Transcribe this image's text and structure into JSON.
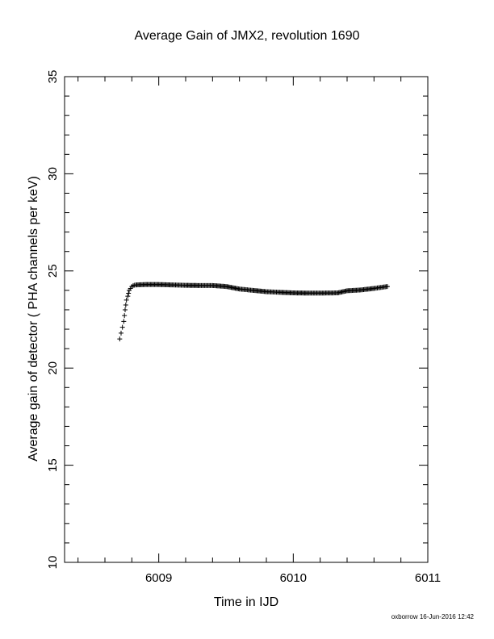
{
  "chart_data": {
    "type": "scatter",
    "title": "Average Gain of JMX2, revolution 1690",
    "xlabel": "Time in IJD",
    "ylabel": "Average gain of detector ( PHA channels per keV)",
    "xlim": [
      6008.3,
      6011.0
    ],
    "ylim": [
      10,
      35
    ],
    "x_ticks": [
      6009,
      6010,
      6011
    ],
    "y_ticks": [
      10,
      15,
      20,
      25,
      30,
      35
    ],
    "x_minor_step": 0.2,
    "y_minor_step": 1,
    "marker": "plus",
    "series": [
      {
        "points": [
          [
            6008.71,
            21.5
          ],
          [
            6008.72,
            21.8
          ],
          [
            6008.73,
            22.1
          ],
          [
            6008.74,
            22.4
          ],
          [
            6008.745,
            22.7
          ],
          [
            6008.75,
            23.0
          ],
          [
            6008.755,
            23.25
          ],
          [
            6008.76,
            23.5
          ],
          [
            6008.77,
            23.7
          ],
          [
            6008.775,
            23.85
          ],
          [
            6008.78,
            24.0
          ],
          [
            6008.79,
            24.1
          ],
          [
            6008.8,
            24.2
          ],
          [
            6008.81,
            24.25
          ],
          [
            6008.83,
            24.28
          ],
          [
            6008.9,
            24.3
          ],
          [
            6009.0,
            24.3
          ],
          [
            6009.1,
            24.28
          ],
          [
            6009.2,
            24.26
          ],
          [
            6009.3,
            24.25
          ],
          [
            6009.4,
            24.25
          ],
          [
            6009.5,
            24.2
          ],
          [
            6009.6,
            24.07
          ],
          [
            6009.7,
            24.0
          ],
          [
            6009.8,
            23.93
          ],
          [
            6009.9,
            23.9
          ],
          [
            6010.0,
            23.87
          ],
          [
            6010.1,
            23.86
          ],
          [
            6010.2,
            23.86
          ],
          [
            6010.33,
            23.87
          ],
          [
            6010.4,
            23.98
          ],
          [
            6010.5,
            24.02
          ],
          [
            6010.6,
            24.1
          ],
          [
            6010.7,
            24.2
          ]
        ]
      }
    ]
  },
  "footer": "oxborrow 16-Jun-2016 12:42"
}
